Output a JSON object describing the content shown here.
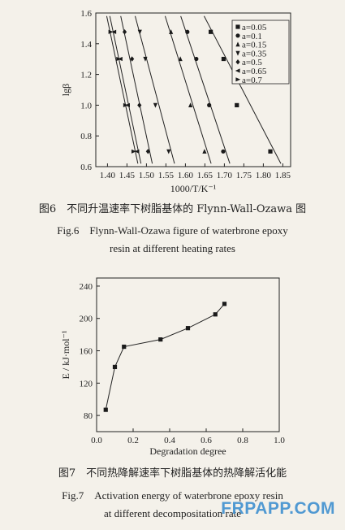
{
  "figure6": {
    "caption_cn": "图6　不同升温速率下树脂基体的 Flynn-Wall-Ozawa 图",
    "caption_en_line1": "Fig.6　Flynn-Wall-Ozawa figure of waterbrone epoxy",
    "caption_en_line2": "resin at different heating rates"
  },
  "figure7": {
    "caption_cn": "图7　不同热降解速率下树脂基体的热降解活化能",
    "caption_en_line1": "Fig.7　Activation energy of waterbrone epoxy resin",
    "caption_en_line2": "at different decompositation rate"
  },
  "watermark": "FRPAPP.COM",
  "chart_data": [
    {
      "type": "scatter",
      "xlabel": "1000/T/K⁻¹",
      "ylabel": "lgβ",
      "xlim": [
        1.37,
        1.87
      ],
      "ylim": [
        0.6,
        1.6
      ],
      "xticks": [
        "1.40",
        "1.45",
        "1.50",
        "1.55",
        "1.60",
        "1.65",
        "1.70",
        "1.75",
        "1.80",
        "1.85"
      ],
      "yticks": [
        "0.6",
        "0.8",
        "1.0",
        "1.2",
        "1.4",
        "1.6"
      ],
      "legend_position": "top-right",
      "series": [
        {
          "name": "a=0.05",
          "marker": "square",
          "x": [
            1.665,
            1.698,
            1.732,
            1.818
          ],
          "y": [
            1.477,
            1.301,
            1.0,
            0.699
          ],
          "fit": [
            [
              1.648,
              1.58
            ],
            [
              1.845,
              0.62
            ]
          ]
        },
        {
          "name": "a=0.1",
          "marker": "circle",
          "x": [
            1.605,
            1.628,
            1.661,
            1.697
          ],
          "y": [
            1.477,
            1.301,
            1.0,
            0.699
          ],
          "fit": [
            [
              1.588,
              1.58
            ],
            [
              1.714,
              0.62
            ]
          ]
        },
        {
          "name": "a=0.15",
          "marker": "triangle-up",
          "x": [
            1.563,
            1.587,
            1.613,
            1.649
          ],
          "y": [
            1.477,
            1.301,
            1.0,
            0.699
          ],
          "fit": [
            [
              1.548,
              1.58
            ],
            [
              1.666,
              0.62
            ]
          ]
        },
        {
          "name": "a=0.35",
          "marker": "triangle-down",
          "x": [
            1.483,
            1.497,
            1.523,
            1.557
          ],
          "y": [
            1.477,
            1.301,
            1.0,
            0.699
          ],
          "fit": [
            [
              1.471,
              1.58
            ],
            [
              1.572,
              0.62
            ]
          ]
        },
        {
          "name": "a=0.5",
          "marker": "diamond",
          "x": [
            1.444,
            1.463,
            1.482,
            1.504
          ],
          "y": [
            1.477,
            1.301,
            1.0,
            0.699
          ],
          "fit": [
            [
              1.434,
              1.58
            ],
            [
              1.515,
              0.62
            ]
          ]
        },
        {
          "name": "a=0.65",
          "marker": "triangle-left",
          "x": [
            1.417,
            1.433,
            1.452,
            1.476
          ],
          "y": [
            1.477,
            1.301,
            1.0,
            0.699
          ],
          "fit": [
            [
              1.406,
              1.58
            ],
            [
              1.486,
              0.62
            ]
          ]
        },
        {
          "name": "a=0.7",
          "marker": "triangle-right",
          "x": [
            1.408,
            1.428,
            1.446,
            1.467
          ],
          "y": [
            1.477,
            1.301,
            1.0,
            0.699
          ],
          "fit": [
            [
              1.398,
              1.58
            ],
            [
              1.478,
              0.62
            ]
          ]
        }
      ]
    },
    {
      "type": "line",
      "xlabel": "Degradation degree",
      "ylabel": "E / kJ·mol⁻¹",
      "xlim": [
        0.0,
        1.0
      ],
      "ylim": [
        60,
        250
      ],
      "xticks": [
        "0.0",
        "0.2",
        "0.4",
        "0.6",
        "0.8",
        "1.0"
      ],
      "yticks": [
        "80",
        "120",
        "160",
        "200",
        "240"
      ],
      "legend_position": "none",
      "series": [
        {
          "name": "",
          "marker": "square",
          "x": [
            0.05,
            0.1,
            0.15,
            0.35,
            0.5,
            0.65,
            0.7
          ],
          "y": [
            87,
            140,
            165,
            174,
            188,
            205,
            218
          ]
        }
      ]
    }
  ]
}
